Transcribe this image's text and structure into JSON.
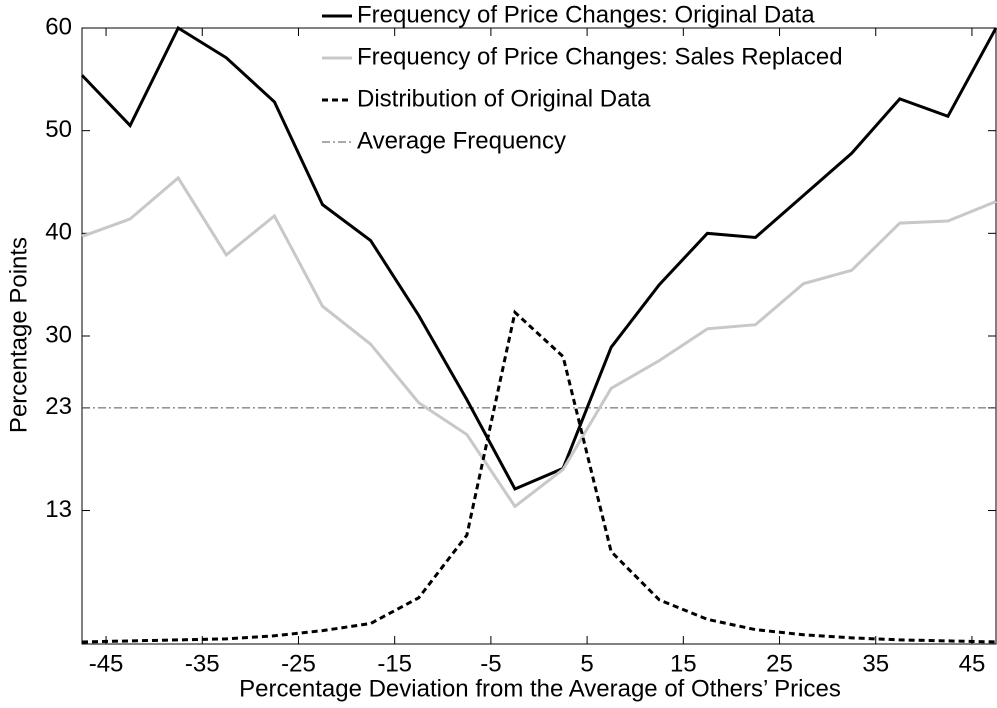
{
  "chart_data": {
    "type": "line",
    "xlabel": "Percentage Deviation from the Average of Others’ Prices",
    "ylabel": "Percentage Points",
    "x": [
      -47.5,
      -42.5,
      -37.5,
      -32.5,
      -27.5,
      -22.5,
      -17.5,
      -12.5,
      -7.5,
      -2.5,
      2.5,
      7.5,
      12.5,
      17.5,
      22.5,
      27.5,
      32.5,
      37.5,
      42.5,
      47.5
    ],
    "series": [
      {
        "name": "Frequency of Price Changes: Original Data",
        "color": "#000000",
        "dash": "solid",
        "values": [
          55.4,
          50.5,
          60,
          57.1,
          52.8,
          42.8,
          39.3,
          32.0,
          23.8,
          15.1,
          17.1,
          28.9,
          35,
          40,
          39.6,
          43.7,
          47.8,
          53.1,
          51.4,
          60
        ]
      },
      {
        "name": "Frequency of Price Changes: Sales Replaced",
        "color": "#c8c8c8",
        "dash": "solid",
        "values": [
          39.7,
          41.4,
          45.4,
          37.9,
          41.7,
          32.9,
          29.2,
          23.5,
          20.4,
          13.4,
          17,
          24.9,
          27.6,
          30.7,
          31.1,
          35.1,
          36.4,
          41,
          41.2,
          43.1
        ]
      },
      {
        "name": "Distribution of Original Data",
        "color": "#000000",
        "dash": "dashed",
        "values": [
          0.2,
          0.3,
          0.4,
          0.5,
          0.8,
          1.3,
          2.0,
          4.5,
          10.6,
          32.3,
          28,
          9,
          4.3,
          2.4,
          1.4,
          0.9,
          0.6,
          0.4,
          0.3,
          0.2
        ]
      }
    ],
    "reference_line": {
      "name": "Average Frequency",
      "value": 23,
      "color": "#555555",
      "dash": "dashdot"
    },
    "xlim": [
      -47.5,
      47.5
    ],
    "xticks": [
      -45,
      -35,
      -25,
      -15,
      -5,
      5,
      15,
      25,
      35,
      45
    ],
    "ylim": [
      0,
      60
    ],
    "yticks": [
      13,
      23,
      30,
      40,
      50,
      60
    ],
    "grid": false,
    "legend": "upper right"
  }
}
